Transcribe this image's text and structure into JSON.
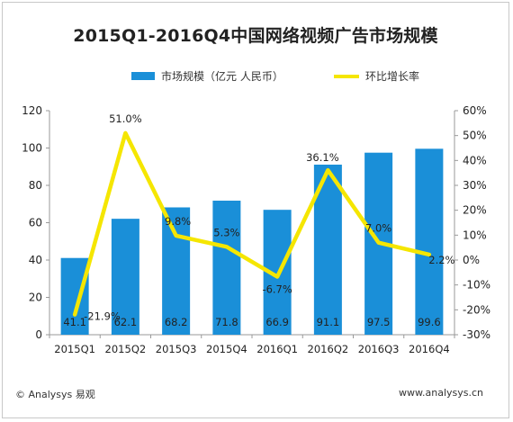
{
  "title": "2015Q1-2016Q4中国网络视频广告市场规模",
  "legend": {
    "bar": "市场规模（亿元 人民币）",
    "line": "环比增长率"
  },
  "footer": {
    "source": "© Analysys 易观",
    "url": "www.analysys.cn"
  },
  "colors": {
    "bar": "#1a8fd8",
    "line": "#f5e600",
    "axis": "#999999",
    "label": "#222222"
  },
  "chart_data": {
    "type": "bar",
    "categories": [
      "2015Q1",
      "2015Q2",
      "2015Q3",
      "2015Q4",
      "2016Q1",
      "2016Q2",
      "2016Q3",
      "2016Q4"
    ],
    "series": [
      {
        "name": "市场规模（亿元 人民币）",
        "type": "bar",
        "axis": "left",
        "values": [
          41.1,
          62.1,
          68.2,
          71.8,
          66.9,
          91.1,
          97.5,
          99.6
        ],
        "labels": [
          "41.1",
          "62.1",
          "68.2",
          "71.8",
          "66.9",
          "91.1",
          "97.5",
          "99.6"
        ]
      },
      {
        "name": "环比增长率",
        "type": "line",
        "axis": "right",
        "values": [
          -21.9,
          51.0,
          9.8,
          5.3,
          -6.7,
          36.1,
          7.0,
          2.2
        ],
        "labels": [
          "-21.9%",
          "51.0%",
          "9.8%",
          "5.3%",
          "-6.7%",
          "36.1%",
          "7.0%",
          "2.2%"
        ]
      }
    ],
    "y_left": {
      "min": 0,
      "max": 120,
      "ticks": [
        0,
        20,
        40,
        60,
        80,
        100,
        120
      ]
    },
    "y_right": {
      "min": -30,
      "max": 60,
      "ticks": [
        "-30%",
        "-20%",
        "-10%",
        "0%",
        "10%",
        "20%",
        "30%",
        "40%",
        "50%",
        "60%"
      ]
    },
    "legend_position": "top",
    "grid": false
  }
}
